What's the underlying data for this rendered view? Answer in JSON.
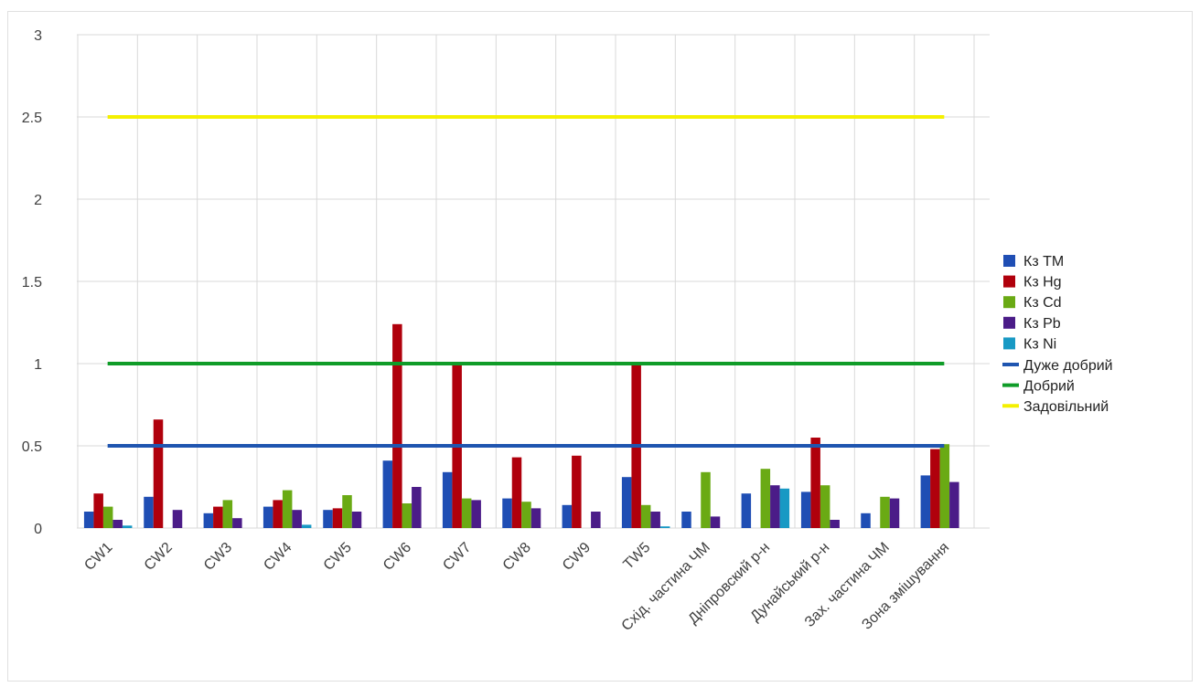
{
  "chart_data": {
    "type": "bar",
    "title": "",
    "xlabel": "",
    "ylabel": "",
    "ylim": [
      0,
      3
    ],
    "yticks": [
      "0",
      "0.5",
      "1",
      "1.5",
      "2",
      "2.5",
      "3"
    ],
    "ytick_values": [
      0,
      0.5,
      1,
      1.5,
      2,
      2.5,
      3
    ],
    "grid": true,
    "legend_position": "right",
    "categories": [
      "CW1",
      "CW2",
      "CW3",
      "CW4",
      "CW5",
      "CW6",
      "CW7",
      "CW8",
      "CW9",
      "TW5",
      "Схід. частина ЧМ",
      "Дніпровский р-н",
      "Дунайський р-н",
      "Зах. частина ЧМ",
      "Зона змішування"
    ],
    "series": [
      {
        "name": "Кз ТМ",
        "color": "#1f4eb4",
        "values": [
          0.1,
          0.19,
          0.09,
          0.13,
          0.11,
          0.41,
          0.34,
          0.18,
          0.14,
          0.31,
          0.1,
          0.21,
          0.22,
          0.09,
          0.32
        ]
      },
      {
        "name": "Кз Hg",
        "color": "#b0000c",
        "values": [
          0.21,
          0.66,
          0.13,
          0.17,
          0.12,
          1.24,
          0.99,
          0.43,
          0.44,
          0.99,
          0,
          0,
          0.55,
          0,
          0.48
        ]
      },
      {
        "name": "Кз Cd",
        "color": "#6aaa14",
        "values": [
          0.13,
          0,
          0.17,
          0.23,
          0.2,
          0.15,
          0.18,
          0.16,
          0,
          0.14,
          0.34,
          0.36,
          0.26,
          0.19,
          0.51
        ]
      },
      {
        "name": "Кз Pb",
        "color": "#4b1c88",
        "values": [
          0.05,
          0.11,
          0.06,
          0.11,
          0.1,
          0.25,
          0.17,
          0.12,
          0.1,
          0.1,
          0.07,
          0.26,
          0.05,
          0.18,
          0.28
        ]
      },
      {
        "name": "Кз Ni",
        "color": "#1899c4",
        "values": [
          0.015,
          0,
          0,
          0.02,
          0,
          0,
          0,
          0,
          0,
          0.01,
          0,
          0.24,
          0,
          0,
          0
        ]
      }
    ],
    "lines": [
      {
        "name": "Дуже добрий",
        "color": "#1f55b0",
        "value": 0.5
      },
      {
        "name": "Добрий",
        "color": "#0f9c28",
        "value": 1.0
      },
      {
        "name": "Задовільний",
        "color": "#f4f000",
        "value": 2.5
      }
    ]
  }
}
